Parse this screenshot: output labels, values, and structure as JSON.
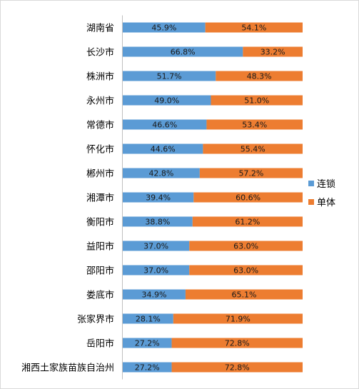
{
  "chart_data": {
    "type": "bar",
    "stacked": true,
    "orientation": "horizontal",
    "percent": true,
    "categories": [
      "湖南省",
      "长沙市",
      "株洲市",
      "永州市",
      "常德市",
      "怀化市",
      "郴州市",
      "湘潭市",
      "衡阳市",
      "益阳市",
      "邵阳市",
      "娄底市",
      "张家界市",
      "岳阳市",
      "湘西土家族苗族自治州"
    ],
    "series": [
      {
        "name": "连锁",
        "color": "#5b9bd5",
        "values": [
          45.9,
          66.8,
          51.7,
          49.0,
          46.6,
          44.6,
          42.8,
          39.4,
          38.8,
          37.0,
          37.0,
          34.9,
          28.1,
          27.2,
          27.2
        ],
        "labels": [
          "45.9%",
          "66.8%",
          "51.7%",
          "49.0%",
          "46.6%",
          "44.6%",
          "42.8%",
          "39.4%",
          "38.8%",
          "37.0%",
          "37.0%",
          "34.9%",
          "28.1%",
          "27.2%",
          "27.2%"
        ]
      },
      {
        "name": "单体",
        "color": "#ed7d31",
        "values": [
          54.1,
          33.2,
          48.3,
          51.0,
          53.4,
          55.4,
          57.2,
          60.6,
          61.2,
          63.0,
          63.0,
          65.1,
          71.9,
          72.8,
          72.8
        ],
        "labels": [
          "54.1%",
          "33.2%",
          "48.3%",
          "51.0%",
          "53.4%",
          "55.4%",
          "57.2%",
          "60.6%",
          "61.2%",
          "63.0%",
          "63.0%",
          "65.1%",
          "71.9%",
          "72.8%",
          "72.8%"
        ]
      }
    ],
    "xlim": [
      0,
      100
    ],
    "grid": false,
    "legend_position": "right"
  }
}
